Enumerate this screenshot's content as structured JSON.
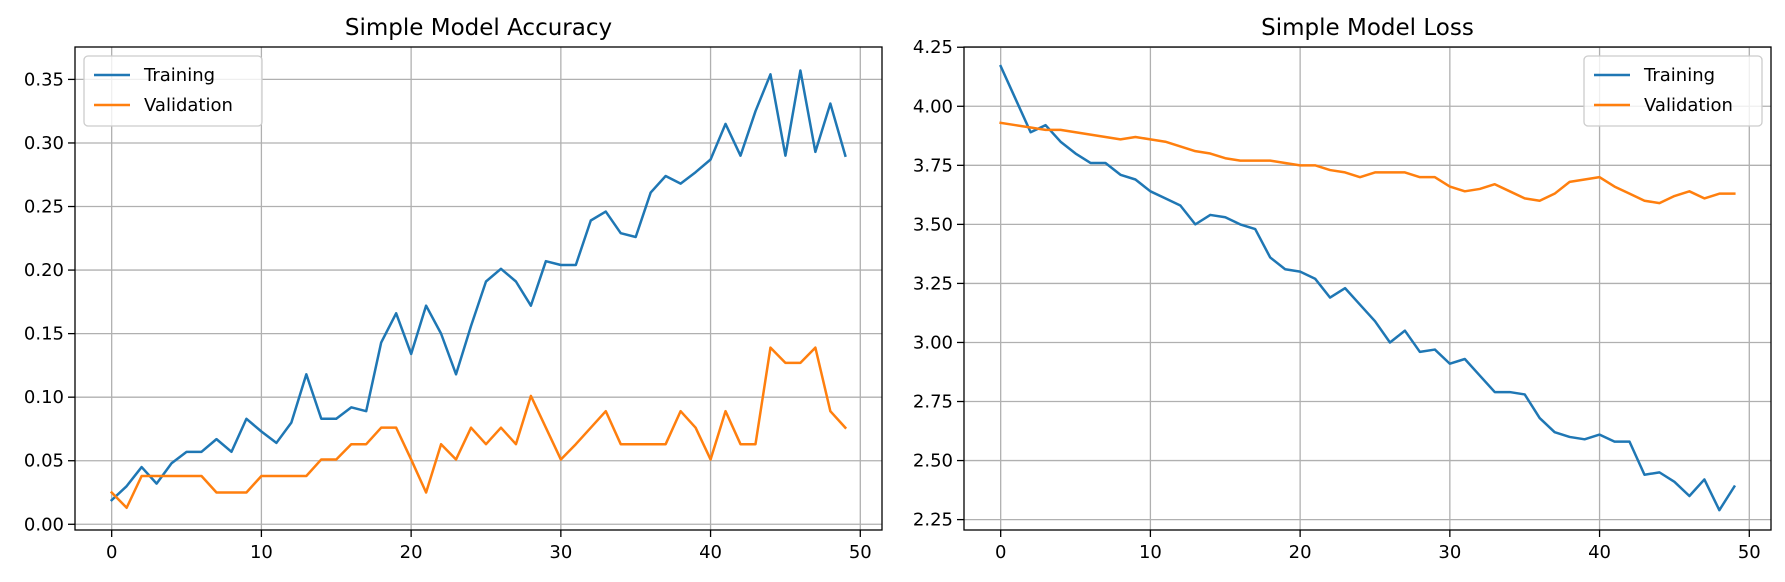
{
  "chart_data": [
    {
      "type": "line",
      "title": "Simple Model Accuracy",
      "xlabel": "",
      "ylabel": "",
      "xlim": [
        -2.45,
        51.45
      ],
      "ylim": [
        -0.0045,
        0.3755
      ],
      "xticks": [
        0,
        10,
        20,
        30,
        40,
        50
      ],
      "yticks": [
        0.0,
        0.05,
        0.1,
        0.15,
        0.2,
        0.25,
        0.3,
        0.35
      ],
      "ytick_decimals": 2,
      "grid": true,
      "legend_position": "upper-left",
      "x": [
        0,
        1,
        2,
        3,
        4,
        5,
        6,
        7,
        8,
        9,
        10,
        11,
        12,
        13,
        14,
        15,
        16,
        17,
        18,
        19,
        20,
        21,
        22,
        23,
        24,
        25,
        26,
        27,
        28,
        29,
        30,
        31,
        32,
        33,
        34,
        35,
        36,
        37,
        38,
        39,
        40,
        41,
        42,
        43,
        44,
        45,
        46,
        47,
        48,
        49
      ],
      "series": [
        {
          "name": "Training",
          "color": "#1f77b4",
          "values": [
            0.019,
            0.03,
            0.045,
            0.032,
            0.048,
            0.057,
            0.057,
            0.067,
            0.057,
            0.083,
            0.073,
            0.064,
            0.08,
            0.118,
            0.083,
            0.083,
            0.092,
            0.089,
            0.143,
            0.166,
            0.134,
            0.172,
            0.15,
            0.118,
            0.156,
            0.191,
            0.201,
            0.191,
            0.172,
            0.207,
            0.204,
            0.204,
            0.239,
            0.246,
            0.229,
            0.226,
            0.261,
            0.274,
            0.268,
            0.277,
            0.287,
            0.315,
            0.29,
            0.325,
            0.354,
            0.29,
            0.357,
            0.293,
            0.331,
            0.29
          ]
        },
        {
          "name": "Validation",
          "color": "#ff7f0e",
          "values": [
            0.025,
            0.013,
            0.038,
            0.038,
            0.038,
            0.038,
            0.038,
            0.025,
            0.025,
            0.025,
            0.038,
            0.038,
            0.038,
            0.038,
            0.051,
            0.051,
            0.063,
            0.063,
            0.076,
            0.076,
            0.051,
            0.025,
            0.063,
            0.051,
            0.076,
            0.063,
            0.076,
            0.063,
            0.101,
            0.076,
            0.051,
            0.063,
            0.076,
            0.089,
            0.063,
            0.063,
            0.063,
            0.063,
            0.089,
            0.076,
            0.051,
            0.089,
            0.063,
            0.063,
            0.139,
            0.127,
            0.127,
            0.139,
            0.089,
            0.076
          ]
        }
      ]
    },
    {
      "type": "line",
      "title": "Simple Model Loss",
      "xlabel": "",
      "ylabel": "",
      "xlim": [
        -2.45,
        51.45
      ],
      "ylim": [
        2.206,
        4.251
      ],
      "xticks": [
        0,
        10,
        20,
        30,
        40,
        50
      ],
      "yticks": [
        2.25,
        2.5,
        2.75,
        3.0,
        3.25,
        3.5,
        3.75,
        4.0,
        4.25
      ],
      "ytick_decimals": 2,
      "grid": true,
      "legend_position": "upper-right",
      "x": [
        0,
        1,
        2,
        3,
        4,
        5,
        6,
        7,
        8,
        9,
        10,
        11,
        12,
        13,
        14,
        15,
        16,
        17,
        18,
        19,
        20,
        21,
        22,
        23,
        24,
        25,
        26,
        27,
        28,
        29,
        30,
        31,
        32,
        33,
        34,
        35,
        36,
        37,
        38,
        39,
        40,
        41,
        42,
        43,
        44,
        45,
        46,
        47,
        48,
        49
      ],
      "series": [
        {
          "name": "Training",
          "color": "#1f77b4",
          "values": [
            4.17,
            4.03,
            3.89,
            3.92,
            3.85,
            3.8,
            3.76,
            3.76,
            3.71,
            3.69,
            3.64,
            3.61,
            3.58,
            3.5,
            3.54,
            3.53,
            3.5,
            3.48,
            3.36,
            3.31,
            3.3,
            3.27,
            3.19,
            3.23,
            3.16,
            3.09,
            3.0,
            3.05,
            2.96,
            2.97,
            2.91,
            2.93,
            2.86,
            2.79,
            2.79,
            2.78,
            2.68,
            2.62,
            2.6,
            2.59,
            2.61,
            2.58,
            2.58,
            2.44,
            2.45,
            2.41,
            2.35,
            2.42,
            2.29,
            2.39
          ]
        },
        {
          "name": "Validation",
          "color": "#ff7f0e",
          "values": [
            3.93,
            3.92,
            3.91,
            3.9,
            3.9,
            3.89,
            3.88,
            3.87,
            3.86,
            3.87,
            3.86,
            3.85,
            3.83,
            3.81,
            3.8,
            3.78,
            3.77,
            3.77,
            3.77,
            3.76,
            3.75,
            3.75,
            3.73,
            3.72,
            3.7,
            3.72,
            3.72,
            3.72,
            3.7,
            3.7,
            3.66,
            3.64,
            3.65,
            3.67,
            3.64,
            3.61,
            3.6,
            3.63,
            3.68,
            3.69,
            3.7,
            3.66,
            3.63,
            3.6,
            3.59,
            3.62,
            3.64,
            3.61,
            3.63,
            3.63
          ]
        }
      ]
    }
  ]
}
